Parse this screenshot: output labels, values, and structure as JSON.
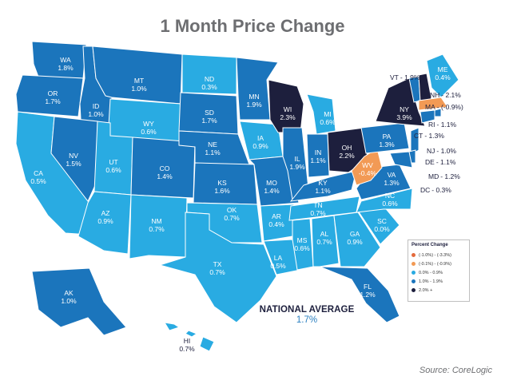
{
  "title": "1 Month Price Change",
  "national": {
    "heading": "NATIONAL AVERAGE",
    "value": "1.7%"
  },
  "source": "Source: CoreLogic",
  "legend": {
    "title": "Percent Change",
    "items": [
      {
        "label": "(-1.0%) - (-3.3%)",
        "color": "#e46a3c"
      },
      {
        "label": "(-0.1%) - (-0.9%)",
        "color": "#f29a55"
      },
      {
        "label": "0.0% - 0.9%",
        "color": "#29abe2"
      },
      {
        "label": "1.0% - 1.9%",
        "color": "#1b75bc"
      },
      {
        "label": "2.0% +",
        "color": "#1d1f3d"
      }
    ]
  },
  "colors": {
    "light": "#29abe2",
    "mid": "#1b75bc",
    "dark": "#1d1f3d",
    "neg_light": "#f29a55",
    "border": "#ffffff"
  },
  "states": [
    {
      "abbr": "WA",
      "value": "1.8%",
      "fill": "mid"
    },
    {
      "abbr": "OR",
      "value": "1.7%",
      "fill": "mid"
    },
    {
      "abbr": "CA",
      "value": "0.5%",
      "fill": "light"
    },
    {
      "abbr": "ID",
      "value": "1.0%",
      "fill": "mid"
    },
    {
      "abbr": "NV",
      "value": "1.5%",
      "fill": "mid"
    },
    {
      "abbr": "MT",
      "value": "1.0%",
      "fill": "mid"
    },
    {
      "abbr": "WY",
      "value": "0.6%",
      "fill": "light"
    },
    {
      "abbr": "UT",
      "value": "0.6%",
      "fill": "light"
    },
    {
      "abbr": "AZ",
      "value": "0.9%",
      "fill": "light"
    },
    {
      "abbr": "CO",
      "value": "1.4%",
      "fill": "mid"
    },
    {
      "abbr": "NM",
      "value": "0.7%",
      "fill": "light"
    },
    {
      "abbr": "ND",
      "value": "0.3%",
      "fill": "light"
    },
    {
      "abbr": "SD",
      "value": "1.7%",
      "fill": "mid"
    },
    {
      "abbr": "NE",
      "value": "1.1%",
      "fill": "mid"
    },
    {
      "abbr": "KS",
      "value": "1.6%",
      "fill": "mid"
    },
    {
      "abbr": "OK",
      "value": "0.7%",
      "fill": "light"
    },
    {
      "abbr": "TX",
      "value": "0.7%",
      "fill": "light"
    },
    {
      "abbr": "MN",
      "value": "1.9%",
      "fill": "mid"
    },
    {
      "abbr": "IA",
      "value": "0.9%",
      "fill": "light"
    },
    {
      "abbr": "MO",
      "value": "1.4%",
      "fill": "mid"
    },
    {
      "abbr": "AR",
      "value": "0.4%",
      "fill": "light"
    },
    {
      "abbr": "LA",
      "value": "0.5%",
      "fill": "light"
    },
    {
      "abbr": "WI",
      "value": "2.3%",
      "fill": "dark"
    },
    {
      "abbr": "IL",
      "value": "1.9%",
      "fill": "mid"
    },
    {
      "abbr": "MI",
      "value": "0.6%",
      "fill": "light"
    },
    {
      "abbr": "IN",
      "value": "1.1%",
      "fill": "mid"
    },
    {
      "abbr": "OH",
      "value": "2.2%",
      "fill": "dark"
    },
    {
      "abbr": "KY",
      "value": "1.1%",
      "fill": "mid"
    },
    {
      "abbr": "TN",
      "value": "0.7%",
      "fill": "light"
    },
    {
      "abbr": "MS",
      "value": "0.6%",
      "fill": "light"
    },
    {
      "abbr": "AL",
      "value": "0.7%",
      "fill": "light"
    },
    {
      "abbr": "GA",
      "value": "0.9%",
      "fill": "light"
    },
    {
      "abbr": "FL",
      "value": "1.2%",
      "fill": "mid"
    },
    {
      "abbr": "SC",
      "value": "0.0%",
      "fill": "light"
    },
    {
      "abbr": "NC",
      "value": "0.6%",
      "fill": "light"
    },
    {
      "abbr": "VA",
      "value": "1.3%",
      "fill": "mid"
    },
    {
      "abbr": "WV",
      "value": "-0.4%",
      "fill": "neg_light"
    },
    {
      "abbr": "PA",
      "value": "1.3%",
      "fill": "mid"
    },
    {
      "abbr": "NY",
      "value": "3.9%",
      "fill": "dark"
    },
    {
      "abbr": "ME",
      "value": "0.4%",
      "fill": "light"
    },
    {
      "abbr": "VT",
      "value": "1.9%",
      "fill": "mid"
    },
    {
      "abbr": "NH",
      "value": "2.1%",
      "fill": "dark"
    },
    {
      "abbr": "MA",
      "value": "(-0.9%)",
      "fill": "neg_light"
    },
    {
      "abbr": "RI",
      "value": "1.1%",
      "fill": "mid"
    },
    {
      "abbr": "CT",
      "value": "1.3%",
      "fill": "mid"
    },
    {
      "abbr": "NJ",
      "value": "1.0%",
      "fill": "mid"
    },
    {
      "abbr": "DE",
      "value": "1.1%",
      "fill": "mid"
    },
    {
      "abbr": "MD",
      "value": "1.2%",
      "fill": "mid"
    },
    {
      "abbr": "DC",
      "value": "0.3%",
      "fill": "light"
    },
    {
      "abbr": "AK",
      "value": "1.0%",
      "fill": "mid"
    },
    {
      "abbr": "HI",
      "value": "0.7%",
      "fill": "light"
    }
  ]
}
